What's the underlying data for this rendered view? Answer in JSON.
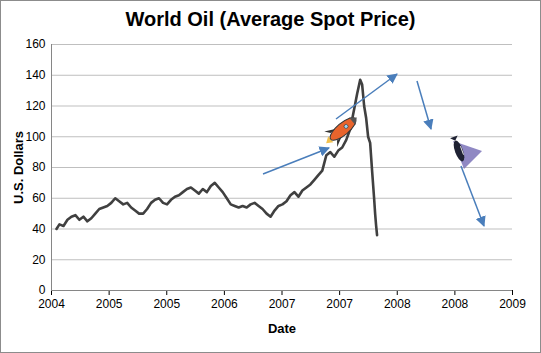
{
  "chart_data": {
    "type": "line",
    "title": "World Oil (Average Spot Price)",
    "x_label": "Date",
    "y_label": "U.S. Dollars",
    "color": "#404040",
    "grid": true,
    "xlim": [
      2004,
      2009
    ],
    "xticks": [
      {
        "value": 2004,
        "label": "2004"
      },
      {
        "value": 2004.625,
        "label": "2005"
      },
      {
        "value": 2005.25,
        "label": "2005"
      },
      {
        "value": 2005.875,
        "label": "2006"
      },
      {
        "value": 2006.5,
        "label": "2007"
      },
      {
        "value": 2007.125,
        "label": "2007"
      },
      {
        "value": 2007.75,
        "label": "2008"
      },
      {
        "value": 2008.375,
        "label": "2008"
      },
      {
        "value": 2009,
        "label": "2009"
      }
    ],
    "ylim": [
      0,
      160
    ],
    "yticks": [
      0,
      20,
      40,
      60,
      80,
      100,
      120,
      140,
      160
    ],
    "x": [
      2004.054,
      2004.086,
      2004.13,
      2004.173,
      2004.216,
      2004.259,
      2004.302,
      2004.346,
      2004.389,
      2004.432,
      2004.475,
      2004.518,
      2004.562,
      2004.605,
      2004.648,
      2004.691,
      2004.734,
      2004.778,
      2004.821,
      2004.864,
      2004.907,
      2004.95,
      2004.994,
      2005.037,
      2005.08,
      2005.123,
      2005.166,
      2005.21,
      2005.253,
      2005.296,
      2005.339,
      2005.382,
      2005.425,
      2005.469,
      2005.512,
      2005.555,
      2005.598,
      2005.641,
      2005.685,
      2005.728,
      2005.771,
      2005.814,
      2005.857,
      2005.901,
      2005.944,
      2005.987,
      2006.03,
      2006.073,
      2006.117,
      2006.16,
      2006.203,
      2006.246,
      2006.289,
      2006.333,
      2006.376,
      2006.419,
      2006.462,
      2006.505,
      2006.549,
      2006.592,
      2006.635,
      2006.678,
      2006.721,
      2006.765,
      2006.808,
      2006.851,
      2006.894,
      2006.937,
      2006.981,
      2007.024,
      2007.067,
      2007.11,
      2007.153,
      2007.197,
      2007.24,
      2007.283,
      2007.315,
      2007.348,
      2007.369,
      2007.391,
      2007.413,
      2007.434,
      2007.456,
      2007.477,
      2007.499,
      2007.51,
      2007.521,
      2007.531
    ],
    "values": [
      40,
      43,
      42,
      46,
      48,
      49,
      46,
      48,
      45,
      47,
      50,
      53,
      54,
      55,
      57,
      60,
      58,
      56,
      57,
      54,
      52,
      50,
      50,
      53,
      57,
      59,
      60,
      57,
      56,
      59,
      61,
      62,
      64,
      66,
      67,
      65,
      63,
      66,
      64,
      68,
      70,
      67,
      64,
      60,
      56,
      55,
      54,
      55,
      54,
      56,
      57,
      55,
      53,
      50,
      48,
      52,
      55,
      56,
      58,
      62,
      64,
      61,
      65,
      67,
      69,
      72,
      75,
      78,
      88,
      90,
      87,
      91,
      93,
      98,
      105,
      118,
      128,
      137,
      134,
      120,
      112,
      100,
      96,
      78,
      60,
      50,
      42,
      36
    ]
  }
}
